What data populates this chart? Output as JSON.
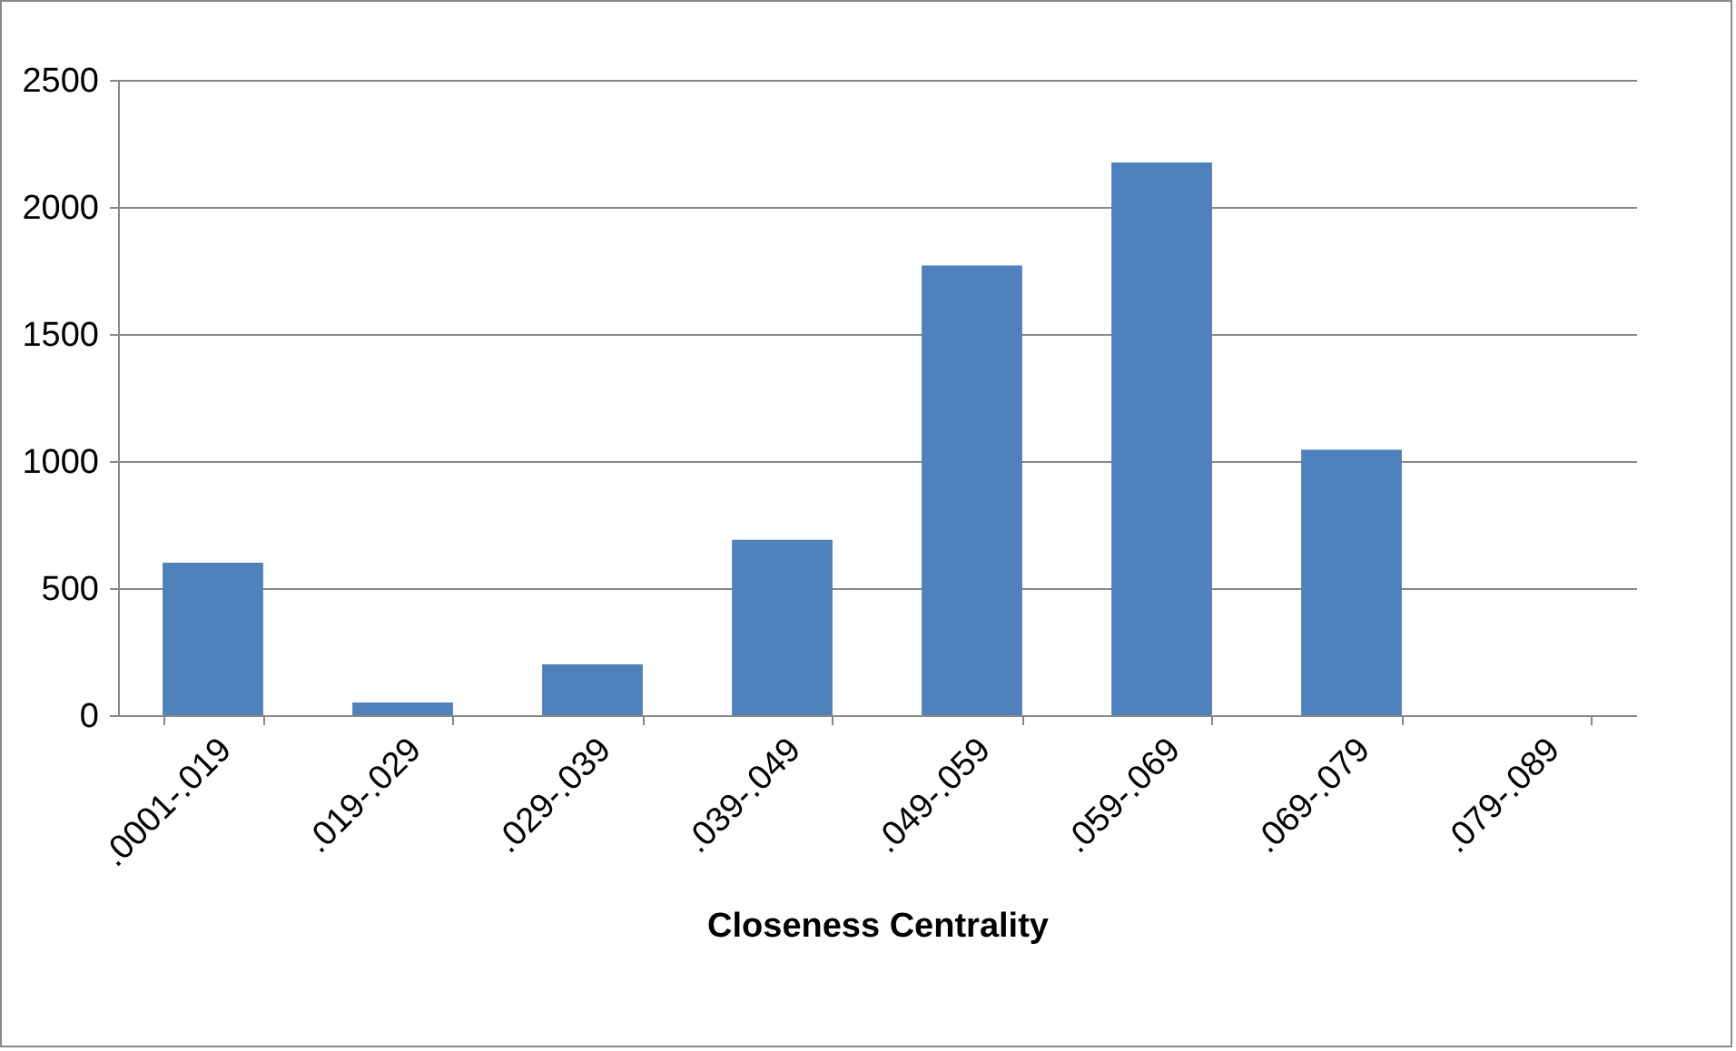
{
  "chart_data": {
    "type": "bar",
    "xlabel": "Closeness Centrality",
    "categories": [
      ".0001-.019",
      ".019-.029",
      ".029-.039",
      ".039-.049",
      ".049-.059",
      ".059-.069",
      ".069-.079",
      ".079-.089"
    ],
    "values": [
      600,
      50,
      200,
      690,
      1770,
      2175,
      1045,
      0
    ],
    "color": "#4f81bd",
    "ylim": [
      0,
      2500
    ],
    "yticks": [
      0,
      500,
      1000,
      1500,
      2000,
      2500
    ],
    "grid": "y"
  }
}
